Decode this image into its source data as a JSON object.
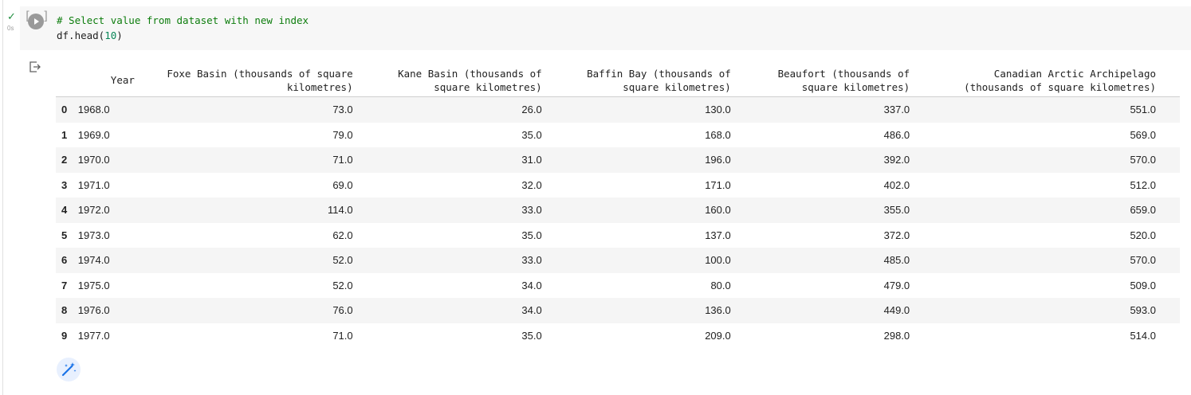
{
  "cell": {
    "status_check": "✓",
    "status_time": "0s",
    "bracket_open": "[",
    "bracket_close": "]",
    "code_comment": "# Select value from dataset with new index",
    "code_fn": "df.head(",
    "code_arg": "10",
    "code_close": ")"
  },
  "table": {
    "headers": [
      "Year",
      "Foxe Basin (thousands of square kilometres)",
      "Kane Basin (thousands of square kilometres)",
      "Baffin Bay (thousands of square kilometres)",
      "Beaufort (thousands of square kilometres)",
      "Canadian Arctic Archipelago (thousands of square kilometres)"
    ],
    "rows": [
      {
        "index": "0",
        "year": "1968.0",
        "foxe": "73.0",
        "kane": "26.0",
        "baffin": "130.0",
        "beaufort": "337.0",
        "caa": "551.0"
      },
      {
        "index": "1",
        "year": "1969.0",
        "foxe": "79.0",
        "kane": "35.0",
        "baffin": "168.0",
        "beaufort": "486.0",
        "caa": "569.0"
      },
      {
        "index": "2",
        "year": "1970.0",
        "foxe": "71.0",
        "kane": "31.0",
        "baffin": "196.0",
        "beaufort": "392.0",
        "caa": "570.0"
      },
      {
        "index": "3",
        "year": "1971.0",
        "foxe": "69.0",
        "kane": "32.0",
        "baffin": "171.0",
        "beaufort": "402.0",
        "caa": "512.0"
      },
      {
        "index": "4",
        "year": "1972.0",
        "foxe": "114.0",
        "kane": "33.0",
        "baffin": "160.0",
        "beaufort": "355.0",
        "caa": "659.0"
      },
      {
        "index": "5",
        "year": "1973.0",
        "foxe": "62.0",
        "kane": "35.0",
        "baffin": "137.0",
        "beaufort": "372.0",
        "caa": "520.0"
      },
      {
        "index": "6",
        "year": "1974.0",
        "foxe": "52.0",
        "kane": "33.0",
        "baffin": "100.0",
        "beaufort": "485.0",
        "caa": "570.0"
      },
      {
        "index": "7",
        "year": "1975.0",
        "foxe": "52.0",
        "kane": "34.0",
        "baffin": "80.0",
        "beaufort": "479.0",
        "caa": "509.0"
      },
      {
        "index": "8",
        "year": "1976.0",
        "foxe": "76.0",
        "kane": "34.0",
        "baffin": "136.0",
        "beaufort": "449.0",
        "caa": "593.0"
      },
      {
        "index": "9",
        "year": "1977.0",
        "foxe": "71.0",
        "kane": "35.0",
        "baffin": "209.0",
        "beaufort": "298.0",
        "caa": "514.0"
      }
    ]
  },
  "icons": {
    "run": "play-circle-icon",
    "output": "output-arrow-icon",
    "magic": "magic-wand-icon"
  },
  "colors": {
    "comment": "#0d7d0d",
    "number": "#098658",
    "check": "#1e8e3e",
    "magic": "#1a73e8"
  }
}
